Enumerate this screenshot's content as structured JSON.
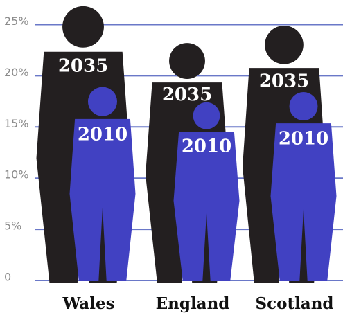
{
  "chart_data": {
    "type": "pictogram",
    "categories": [
      "Wales",
      "England",
      "Scotland"
    ],
    "series": [
      {
        "name": "2035",
        "color": "#231f20",
        "values": [
          26.8,
          23.2,
          24.9
        ]
      },
      {
        "name": "2010",
        "color": "#4141c2",
        "values": [
          18.9,
          17.4,
          18.4
        ]
      }
    ],
    "ylim": [
      0,
      27.4
    ],
    "yticks": [
      0,
      {
        "value": 5,
        "label": "5%"
      },
      {
        "value": 10,
        "label": "10%"
      },
      {
        "value": 15,
        "label": "15%"
      },
      {
        "value": 20,
        "label": "20%"
      },
      {
        "value": 25,
        "label": "25%"
      }
    ],
    "grid": true,
    "grid_color": "#6a78c8"
  }
}
